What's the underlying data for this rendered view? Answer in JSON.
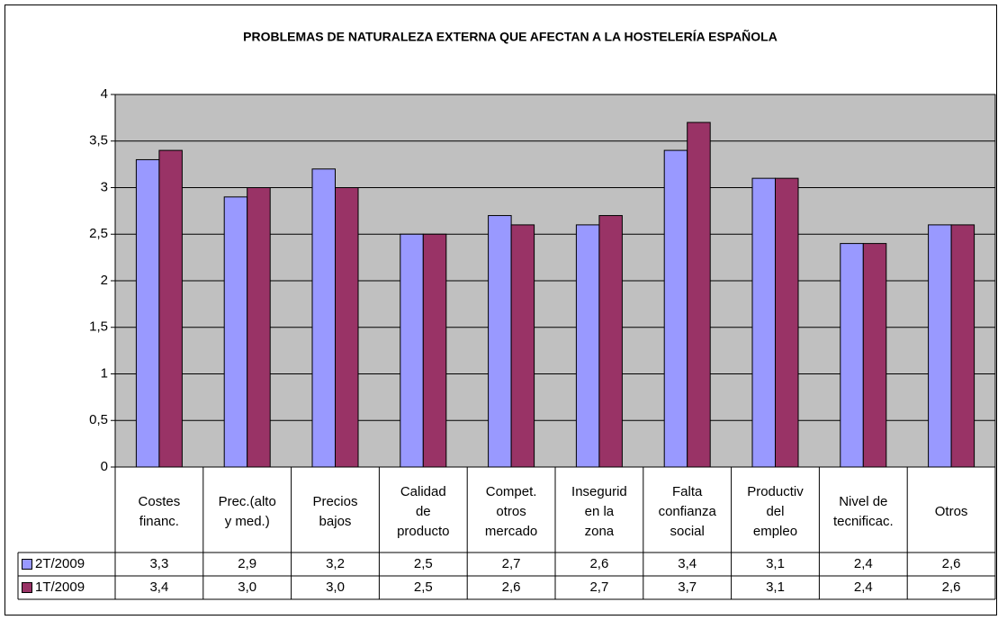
{
  "chart_data": {
    "type": "bar",
    "title": "PROBLEMAS DE NATURALEZA EXTERNA QUE AFECTAN A LA HOSTELERÍA ESPAÑOLA",
    "categories": [
      "Costes\nfinanc.",
      "Prec.(alto\ny med.)",
      "Precios\nbajos",
      "Calidad\nde\nproducto",
      "Compet.\notros\nmercado",
      "Insegurid\nen la\nzona",
      "Falta\nconfianza\nsocial",
      "Productiv\ndel\nempleo",
      "Nivel de\ntecnificac.",
      "Otros"
    ],
    "series": [
      {
        "name": "2T/2009",
        "color": "#9999ff",
        "values": [
          3.3,
          2.9,
          3.2,
          2.5,
          2.7,
          2.6,
          3.4,
          3.1,
          2.4,
          2.6
        ],
        "value_labels": [
          "3,3",
          "2,9",
          "3,2",
          "2,5",
          "2,7",
          "2,6",
          "3,4",
          "3,1",
          "2,4",
          "2,6"
        ]
      },
      {
        "name": "1T/2009",
        "color": "#993366",
        "values": [
          3.4,
          3.0,
          3.0,
          2.5,
          2.6,
          2.7,
          3.7,
          3.1,
          2.4,
          2.6
        ],
        "value_labels": [
          "3,4",
          "3,0",
          "3,0",
          "2,5",
          "2,6",
          "2,7",
          "3,7",
          "3,1",
          "2,4",
          "2,6"
        ]
      }
    ],
    "ylim": [
      0,
      4
    ],
    "yticks": [
      0,
      {
        "value": 0.5,
        "label": "0,5"
      },
      1,
      {
        "value": 1.5,
        "label": "1,5"
      },
      2,
      {
        "value": 2.5,
        "label": "2,5"
      },
      3,
      {
        "value": 3.5,
        "label": "3,5"
      },
      4
    ],
    "grid": true,
    "plot_background": "#c0c0c0"
  }
}
